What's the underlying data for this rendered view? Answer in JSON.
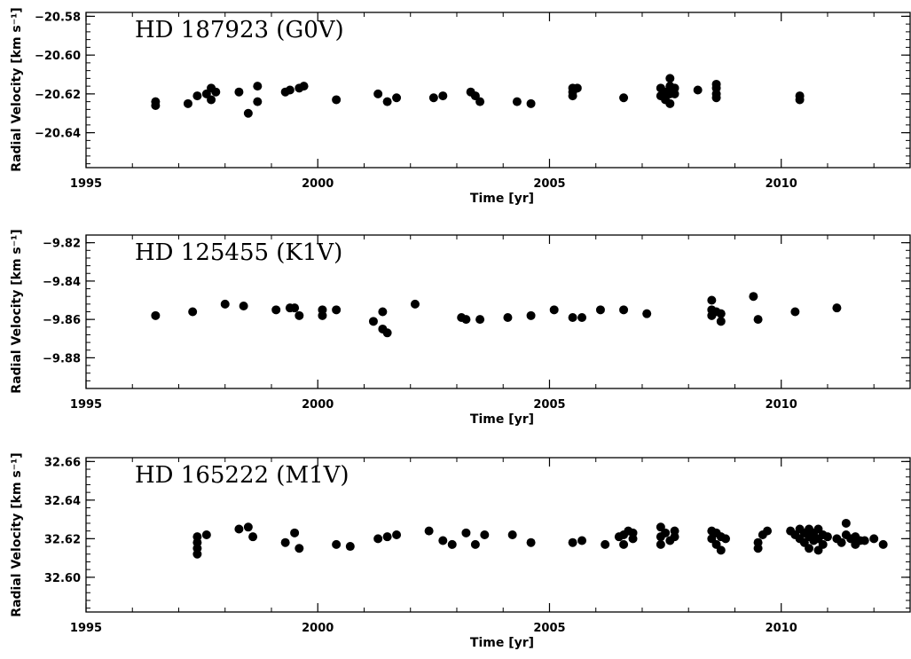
{
  "chart_data": [
    {
      "type": "scatter",
      "title": "HD 187923 (G0V)",
      "xlabel": "Time [yr]",
      "ylabel": "Radial Velocity [km s⁻¹]",
      "xlim": [
        1995,
        2012.8
      ],
      "ylim": [
        -20.658,
        -20.578
      ],
      "xticks": [
        "1995",
        "2000",
        "2005",
        "2010"
      ],
      "yticks": [
        "-20.58",
        "-20.60",
        "-20.62",
        "-20.64"
      ],
      "series": [
        {
          "points": [
            [
              1996.5,
              -20.626
            ],
            [
              1996.5,
              -20.624
            ],
            [
              1997.2,
              -20.625
            ],
            [
              1997.4,
              -20.621
            ],
            [
              1997.6,
              -20.62
            ],
            [
              1997.7,
              -20.617
            ],
            [
              1997.7,
              -20.623
            ],
            [
              1997.8,
              -20.619
            ],
            [
              1998.3,
              -20.619
            ],
            [
              1998.5,
              -20.63
            ],
            [
              1998.7,
              -20.616
            ],
            [
              1998.7,
              -20.624
            ],
            [
              1999.3,
              -20.619
            ],
            [
              1999.4,
              -20.618
            ],
            [
              1999.6,
              -20.617
            ],
            [
              1999.7,
              -20.616
            ],
            [
              2000.4,
              -20.623
            ],
            [
              2001.3,
              -20.62
            ],
            [
              2001.5,
              -20.624
            ],
            [
              2001.7,
              -20.622
            ],
            [
              2002.5,
              -20.622
            ],
            [
              2002.7,
              -20.621
            ],
            [
              2003.3,
              -20.619
            ],
            [
              2003.4,
              -20.621
            ],
            [
              2003.5,
              -20.624
            ],
            [
              2004.3,
              -20.624
            ],
            [
              2004.6,
              -20.625
            ],
            [
              2005.5,
              -20.617
            ],
            [
              2005.5,
              -20.619
            ],
            [
              2005.5,
              -20.621
            ],
            [
              2005.6,
              -20.617
            ],
            [
              2006.6,
              -20.622
            ],
            [
              2007.4,
              -20.617
            ],
            [
              2007.4,
              -20.621
            ],
            [
              2007.5,
              -20.619
            ],
            [
              2007.5,
              -20.623
            ],
            [
              2007.6,
              -20.612
            ],
            [
              2007.6,
              -20.616
            ],
            [
              2007.6,
              -20.62
            ],
            [
              2007.6,
              -20.625
            ],
            [
              2007.7,
              -20.617
            ],
            [
              2007.7,
              -20.62
            ],
            [
              2008.2,
              -20.618
            ],
            [
              2008.6,
              -20.615
            ],
            [
              2008.6,
              -20.617
            ],
            [
              2008.6,
              -20.62
            ],
            [
              2008.6,
              -20.622
            ],
            [
              2010.4,
              -20.621
            ],
            [
              2010.4,
              -20.623
            ]
          ]
        }
      ]
    },
    {
      "type": "scatter",
      "title": "HD 125455 (K1V)",
      "xlabel": "Time [yr]",
      "ylabel": "Radial Velocity [km s⁻¹]",
      "xlim": [
        1995,
        2012.8
      ],
      "ylim": [
        -9.896,
        -9.816
      ],
      "xticks": [
        "1995",
        "2000",
        "2005",
        "2010"
      ],
      "yticks": [
        "-9.82",
        "-9.84",
        "-9.86",
        "-9.88"
      ],
      "series": [
        {
          "points": [
            [
              1996.5,
              -9.858
            ],
            [
              1997.3,
              -9.856
            ],
            [
              1998.0,
              -9.852
            ],
            [
              1998.4,
              -9.853
            ],
            [
              1999.1,
              -9.855
            ],
            [
              1999.4,
              -9.854
            ],
            [
              1999.5,
              -9.854
            ],
            [
              1999.6,
              -9.858
            ],
            [
              2000.1,
              -9.855
            ],
            [
              2000.1,
              -9.858
            ],
            [
              2000.4,
              -9.855
            ],
            [
              2001.2,
              -9.861
            ],
            [
              2001.4,
              -9.856
            ],
            [
              2001.4,
              -9.865
            ],
            [
              2001.5,
              -9.867
            ],
            [
              2002.1,
              -9.852
            ],
            [
              2003.1,
              -9.859
            ],
            [
              2003.2,
              -9.86
            ],
            [
              2003.5,
              -9.86
            ],
            [
              2004.1,
              -9.859
            ],
            [
              2004.6,
              -9.858
            ],
            [
              2005.1,
              -9.855
            ],
            [
              2005.5,
              -9.859
            ],
            [
              2005.7,
              -9.859
            ],
            [
              2006.1,
              -9.855
            ],
            [
              2006.6,
              -9.855
            ],
            [
              2007.1,
              -9.857
            ],
            [
              2008.5,
              -9.85
            ],
            [
              2008.5,
              -9.855
            ],
            [
              2008.5,
              -9.858
            ],
            [
              2008.6,
              -9.856
            ],
            [
              2008.7,
              -9.857
            ],
            [
              2008.7,
              -9.861
            ],
            [
              2009.4,
              -9.848
            ],
            [
              2009.5,
              -9.86
            ],
            [
              2010.3,
              -9.856
            ],
            [
              2011.2,
              -9.854
            ]
          ]
        }
      ]
    },
    {
      "type": "scatter",
      "title": "HD 165222 (M1V)",
      "xlabel": "Time [yr]",
      "ylabel": "Radial Velocity [km s⁻¹]",
      "xlim": [
        1995,
        2012.8
      ],
      "ylim": [
        32.582,
        32.662
      ],
      "xticks": [
        "1995",
        "2000",
        "2005",
        "2010"
      ],
      "yticks": [
        "32.66",
        "32.64",
        "32.62",
        "32.60"
      ],
      "series": [
        {
          "points": [
            [
              1997.4,
              32.621
            ],
            [
              1997.4,
              32.618
            ],
            [
              1997.4,
              32.615
            ],
            [
              1997.4,
              32.612
            ],
            [
              1997.6,
              32.622
            ],
            [
              1998.3,
              32.625
            ],
            [
              1998.5,
              32.626
            ],
            [
              1998.6,
              32.621
            ],
            [
              1999.3,
              32.618
            ],
            [
              1999.5,
              32.623
            ],
            [
              1999.6,
              32.615
            ],
            [
              2000.4,
              32.617
            ],
            [
              2000.7,
              32.616
            ],
            [
              2001.3,
              32.62
            ],
            [
              2001.5,
              32.621
            ],
            [
              2001.7,
              32.622
            ],
            [
              2002.4,
              32.624
            ],
            [
              2002.7,
              32.619
            ],
            [
              2002.9,
              32.617
            ],
            [
              2003.2,
              32.623
            ],
            [
              2003.4,
              32.617
            ],
            [
              2003.6,
              32.622
            ],
            [
              2004.2,
              32.622
            ],
            [
              2004.6,
              32.618
            ],
            [
              2005.5,
              32.618
            ],
            [
              2005.7,
              32.619
            ],
            [
              2006.2,
              32.617
            ],
            [
              2006.5,
              32.621
            ],
            [
              2006.6,
              32.617
            ],
            [
              2006.6,
              32.622
            ],
            [
              2006.7,
              32.624
            ],
            [
              2006.8,
              32.62
            ],
            [
              2006.8,
              32.623
            ],
            [
              2007.4,
              32.626
            ],
            [
              2007.4,
              32.621
            ],
            [
              2007.4,
              32.617
            ],
            [
              2007.5,
              32.623
            ],
            [
              2007.6,
              32.619
            ],
            [
              2007.7,
              32.621
            ],
            [
              2007.7,
              32.624
            ],
            [
              2008.5,
              32.624
            ],
            [
              2008.5,
              32.62
            ],
            [
              2008.6,
              32.617
            ],
            [
              2008.6,
              32.623
            ],
            [
              2008.7,
              32.614
            ],
            [
              2008.7,
              32.621
            ],
            [
              2008.8,
              32.62
            ],
            [
              2009.5,
              32.615
            ],
            [
              2009.5,
              32.618
            ],
            [
              2009.6,
              32.622
            ],
            [
              2009.7,
              32.624
            ],
            [
              2010.2,
              32.624
            ],
            [
              2010.3,
              32.622
            ],
            [
              2010.4,
              32.62
            ],
            [
              2010.4,
              32.625
            ],
            [
              2010.5,
              32.618
            ],
            [
              2010.5,
              32.623
            ],
            [
              2010.6,
              32.615
            ],
            [
              2010.6,
              32.621
            ],
            [
              2010.6,
              32.625
            ],
            [
              2010.7,
              32.619
            ],
            [
              2010.7,
              32.623
            ],
            [
              2010.8,
              32.614
            ],
            [
              2010.8,
              32.62
            ],
            [
              2010.8,
              32.625
            ],
            [
              2010.9,
              32.617
            ],
            [
              2010.9,
              32.622
            ],
            [
              2011.0,
              32.621
            ],
            [
              2011.2,
              32.62
            ],
            [
              2011.3,
              32.618
            ],
            [
              2011.4,
              32.622
            ],
            [
              2011.4,
              32.628
            ],
            [
              2011.5,
              32.62
            ],
            [
              2011.6,
              32.617
            ],
            [
              2011.6,
              32.621
            ],
            [
              2011.7,
              32.619
            ],
            [
              2011.8,
              32.619
            ],
            [
              2012.0,
              32.62
            ],
            [
              2012.2,
              32.617
            ]
          ]
        }
      ]
    }
  ]
}
